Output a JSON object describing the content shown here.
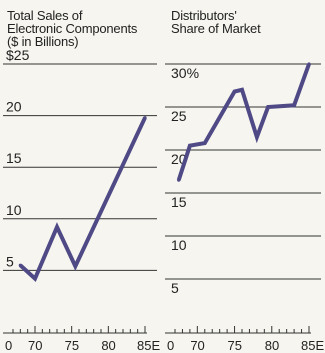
{
  "chart_data": [
    {
      "type": "line",
      "title_lines": [
        "Total Sales of",
        "Electronic Components",
        "($ in Billions)"
      ],
      "xlabel": "",
      "ylabel": "",
      "x_ticks": [
        "0",
        "70",
        "75",
        "80",
        "85E"
      ],
      "y_ticks": [
        {
          "value": 5,
          "label": "5"
        },
        {
          "value": 10,
          "label": "10"
        },
        {
          "value": 15,
          "label": "15"
        },
        {
          "value": 20,
          "label": "20"
        },
        {
          "value": 25,
          "label": "$25"
        }
      ],
      "xlim": [
        1967,
        1985
      ],
      "ylim": [
        0,
        25
      ],
      "grid": true,
      "x": [
        1968,
        1970,
        1973,
        1975.5,
        1985
      ],
      "values": [
        5.5,
        4.2,
        9.2,
        5.4,
        19.8
      ],
      "colors": {
        "line": "#4f4a86",
        "grid": "#333333",
        "text": "#222222"
      }
    },
    {
      "type": "line",
      "title_lines": [
        "Distributors'",
        "Share of Market"
      ],
      "xlabel": "",
      "ylabel": "",
      "x_ticks": [
        "0",
        "70",
        "75",
        "80",
        "85E"
      ],
      "y_ticks": [
        {
          "value": 5,
          "label": "5"
        },
        {
          "value": 10,
          "label": "10"
        },
        {
          "value": 15,
          "label": "15"
        },
        {
          "value": 20,
          "label": "20"
        },
        {
          "value": 25,
          "label": "25"
        },
        {
          "value": 30,
          "label": "30%"
        }
      ],
      "xlim": [
        1967,
        1985
      ],
      "ylim": [
        0,
        30
      ],
      "grid": true,
      "x": [
        1967.5,
        1969,
        1971,
        1975,
        1976,
        1978,
        1979.5,
        1983,
        1985
      ],
      "values": [
        16.5,
        20.5,
        20.8,
        26.8,
        27.0,
        21.5,
        25.0,
        25.2,
        30.0
      ],
      "colors": {
        "line": "#4f4a86",
        "grid": "#333333",
        "text": "#222222"
      }
    }
  ]
}
